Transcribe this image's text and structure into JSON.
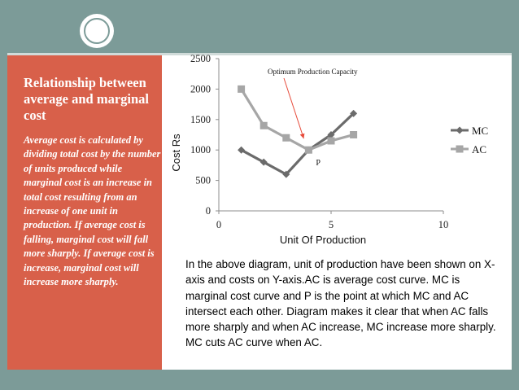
{
  "sidebar": {
    "title": "Relationship between average and marginal cost",
    "body": "Average cost is calculated by dividing total cost by the number of units produced while marginal cost is an increase in total cost resulting from an increase of one unit in production. If average cost is falling, marginal cost will fall more sharply. If average cost is increase, marginal cost will increase more sharply."
  },
  "caption": "In the above diagram, unit of production have been shown on X-axis and costs on Y-axis.AC is average cost curve. MC is marginal cost curve and P is the point at which MC and AC intersect each other. Diagram makes it clear that when AC falls more sharply and when AC increase, MC increase more sharply. MC cuts AC curve when AC.",
  "chart_data": {
    "type": "line",
    "xlabel": "Unit Of Production",
    "ylabel": "Cost Rs",
    "xlim": [
      0,
      10
    ],
    "ylim": [
      0,
      2500
    ],
    "x_ticks": [
      "0",
      "5",
      "10"
    ],
    "y_ticks": [
      "0",
      "500",
      "1000",
      "1500",
      "2000",
      "2500"
    ],
    "grid": false,
    "legend_position": "right",
    "series": [
      {
        "name": "MC",
        "color": "#6b6b6b",
        "marker": "diamond",
        "x": [
          1,
          2,
          3,
          4,
          5,
          6
        ],
        "y": [
          1000,
          800,
          600,
          1000,
          1250,
          1600
        ]
      },
      {
        "name": "AC",
        "color": "#a6a6a6",
        "marker": "square",
        "x": [
          1,
          2,
          3,
          4,
          5,
          6
        ],
        "y": [
          2000,
          1400,
          1200,
          1000,
          1150,
          1250
        ]
      }
    ],
    "annotations": [
      {
        "text": "Optimum Production Capacity",
        "arrow_to": [
          4,
          1000
        ]
      },
      {
        "text": "P",
        "at": [
          4,
          1000
        ]
      }
    ]
  }
}
